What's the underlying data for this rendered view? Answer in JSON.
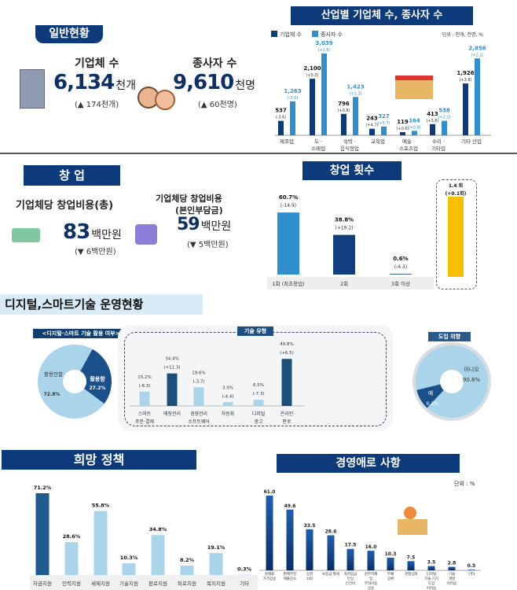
{
  "colors": {
    "navy": "#0d3a7a",
    "dark_blue": "#1b4f8a",
    "mid_blue": "#2f8fd0",
    "light_blue": "#a9d4ea",
    "yellow": "#f8bf00"
  },
  "general": {
    "title": "일반현황",
    "firms_label": "기업체 수",
    "firms_value": "6,134",
    "firms_unit": "천개",
    "firms_change": "(▲ 174천개)",
    "workers_label": "종사자 수",
    "workers_value": "9,610",
    "workers_unit": "천명",
    "workers_change": "(▲ 60천명)"
  },
  "startup": {
    "title": "창 업",
    "total_label": "기업체당 창업비용(총)",
    "total_value": "83",
    "total_unit": "백만원",
    "total_change": "(▼ 6백만원)",
    "self_label1": "기업체당 창업비용",
    "self_label2": "(본인부담금)",
    "self_value": "59",
    "self_unit": "백만원",
    "self_change": "(▼ 5백만원)"
  },
  "digital": {
    "title": "디지털,스마트기술 운영현황",
    "usage_title": "<디지털·스마트 기술 활용 여부>",
    "types_title": "기술 유형",
    "intent_title": "도입 의향",
    "arrow_icon": "arrow-right-icon"
  },
  "chart_data": [
    {
      "type": "bar",
      "title": "산업별 기업체 수, 종사자 수",
      "unit_note": "단위 : 천개, 천명, %",
      "categories": [
        "제조업",
        "도 · 소매업",
        "숙박 · 음식점업",
        "교육업",
        "예술 · 스포츠업",
        "수리 · 기타업",
        "기타 산업"
      ],
      "series": [
        {
          "name": "기업체 수",
          "values": [
            537,
            2100,
            796,
            243,
            119,
            413,
            1926
          ],
          "changes": [
            "(-3.6)",
            "(+5.0)",
            "(+0.8)",
            "(+4.7)",
            "(+0.6)",
            "(+3.6)",
            "(+3.8)"
          ]
        },
        {
          "name": "종사자 수",
          "values": [
            1263,
            3039,
            1423,
            327,
            164,
            538,
            2856
          ],
          "changes": [
            "(-3.0)",
            "(+1.6)",
            "(+1.2)",
            "(+5.7)",
            "(+0.8)",
            "(+2.1)",
            "(+2.1)"
          ]
        }
      ]
    },
    {
      "type": "bar",
      "title": "창업 횟수",
      "categories": [
        "1회 (최초창업)",
        "2회",
        "3회 이상"
      ],
      "values": [
        60.7,
        38.8,
        0.6
      ],
      "labels": [
        "60.7%",
        "38.8%",
        "0.6%"
      ],
      "changes": [
        "(-14.9)",
        "(+19.2)",
        "(-4.3)"
      ],
      "average": {
        "value": 1.4,
        "label": "1.4 회",
        "change": "(+0.1회)"
      }
    },
    {
      "type": "pie",
      "title": "<디지털·스마트 기술 활용 여부>",
      "slices": [
        {
          "name": "활용함",
          "value": 27.2,
          "label": "27.2%"
        },
        {
          "name": "활용안함",
          "value": 72.8,
          "label": "72.8%"
        }
      ]
    },
    {
      "type": "bar",
      "title": "기술 유형",
      "categories": [
        "스마트 주문·결제",
        "매장관리",
        "경영관리 소프트웨어",
        "자동화",
        "디지털 광고",
        "온라인 판로"
      ],
      "values": [
        15.2,
        34.4,
        19.6,
        3.9,
        6.5,
        49.8
      ],
      "labels": [
        "15.2%",
        "34.4%",
        "19.6%",
        "3.9%",
        "6.5%",
        "49.8%"
      ],
      "changes": [
        "(-6.3)",
        "(+11.3)",
        "(-3.7)",
        "(-4.4)",
        "(-7.3)",
        "(+6.5)"
      ]
    },
    {
      "type": "pie",
      "title": "도입 의향",
      "slices": [
        {
          "name": "예",
          "value": 9.2,
          "label": "9.2%"
        },
        {
          "name": "아니오",
          "value": 90.8,
          "label": "90.8%"
        }
      ]
    },
    {
      "type": "bar",
      "title": "희망 정책",
      "categories": [
        "자금지원",
        "인력지원",
        "세제지원",
        "기술지원",
        "판로지원",
        "퇴로지원",
        "복지지원",
        "기타"
      ],
      "values": [
        71.2,
        28.6,
        55.8,
        10.3,
        34.8,
        8.2,
        19.1,
        0.3
      ],
      "labels": [
        "71.2%",
        "28.6%",
        "55.8%",
        "10.3%",
        "34.8%",
        "8.2%",
        "19.1%",
        "0.3%"
      ]
    },
    {
      "type": "bar",
      "title": "경영애로 사항",
      "unit_note": "단위 : %",
      "categories": [
        "원재료 가격상승",
        "판매부진 매출감소",
        "상권 쇠퇴",
        "보증금·월세",
        "최저임금 인상 인건비",
        "원부자재 및 부대비용 상승",
        "부채 상환",
        "경쟁심화",
        "디지털 기술·기기 도입 어려움",
        "기술 개발 어려움",
        "기타"
      ],
      "values": [
        61.0,
        49.6,
        33.5,
        28.6,
        17.5,
        16.0,
        10.3,
        7.5,
        3.5,
        2.8,
        0.5
      ],
      "labels": [
        "61.0",
        "49.6",
        "33.5",
        "28.6",
        "17.5",
        "16.0",
        "10.3",
        "7.5",
        "3.5",
        "2.8",
        "0.5"
      ]
    }
  ]
}
